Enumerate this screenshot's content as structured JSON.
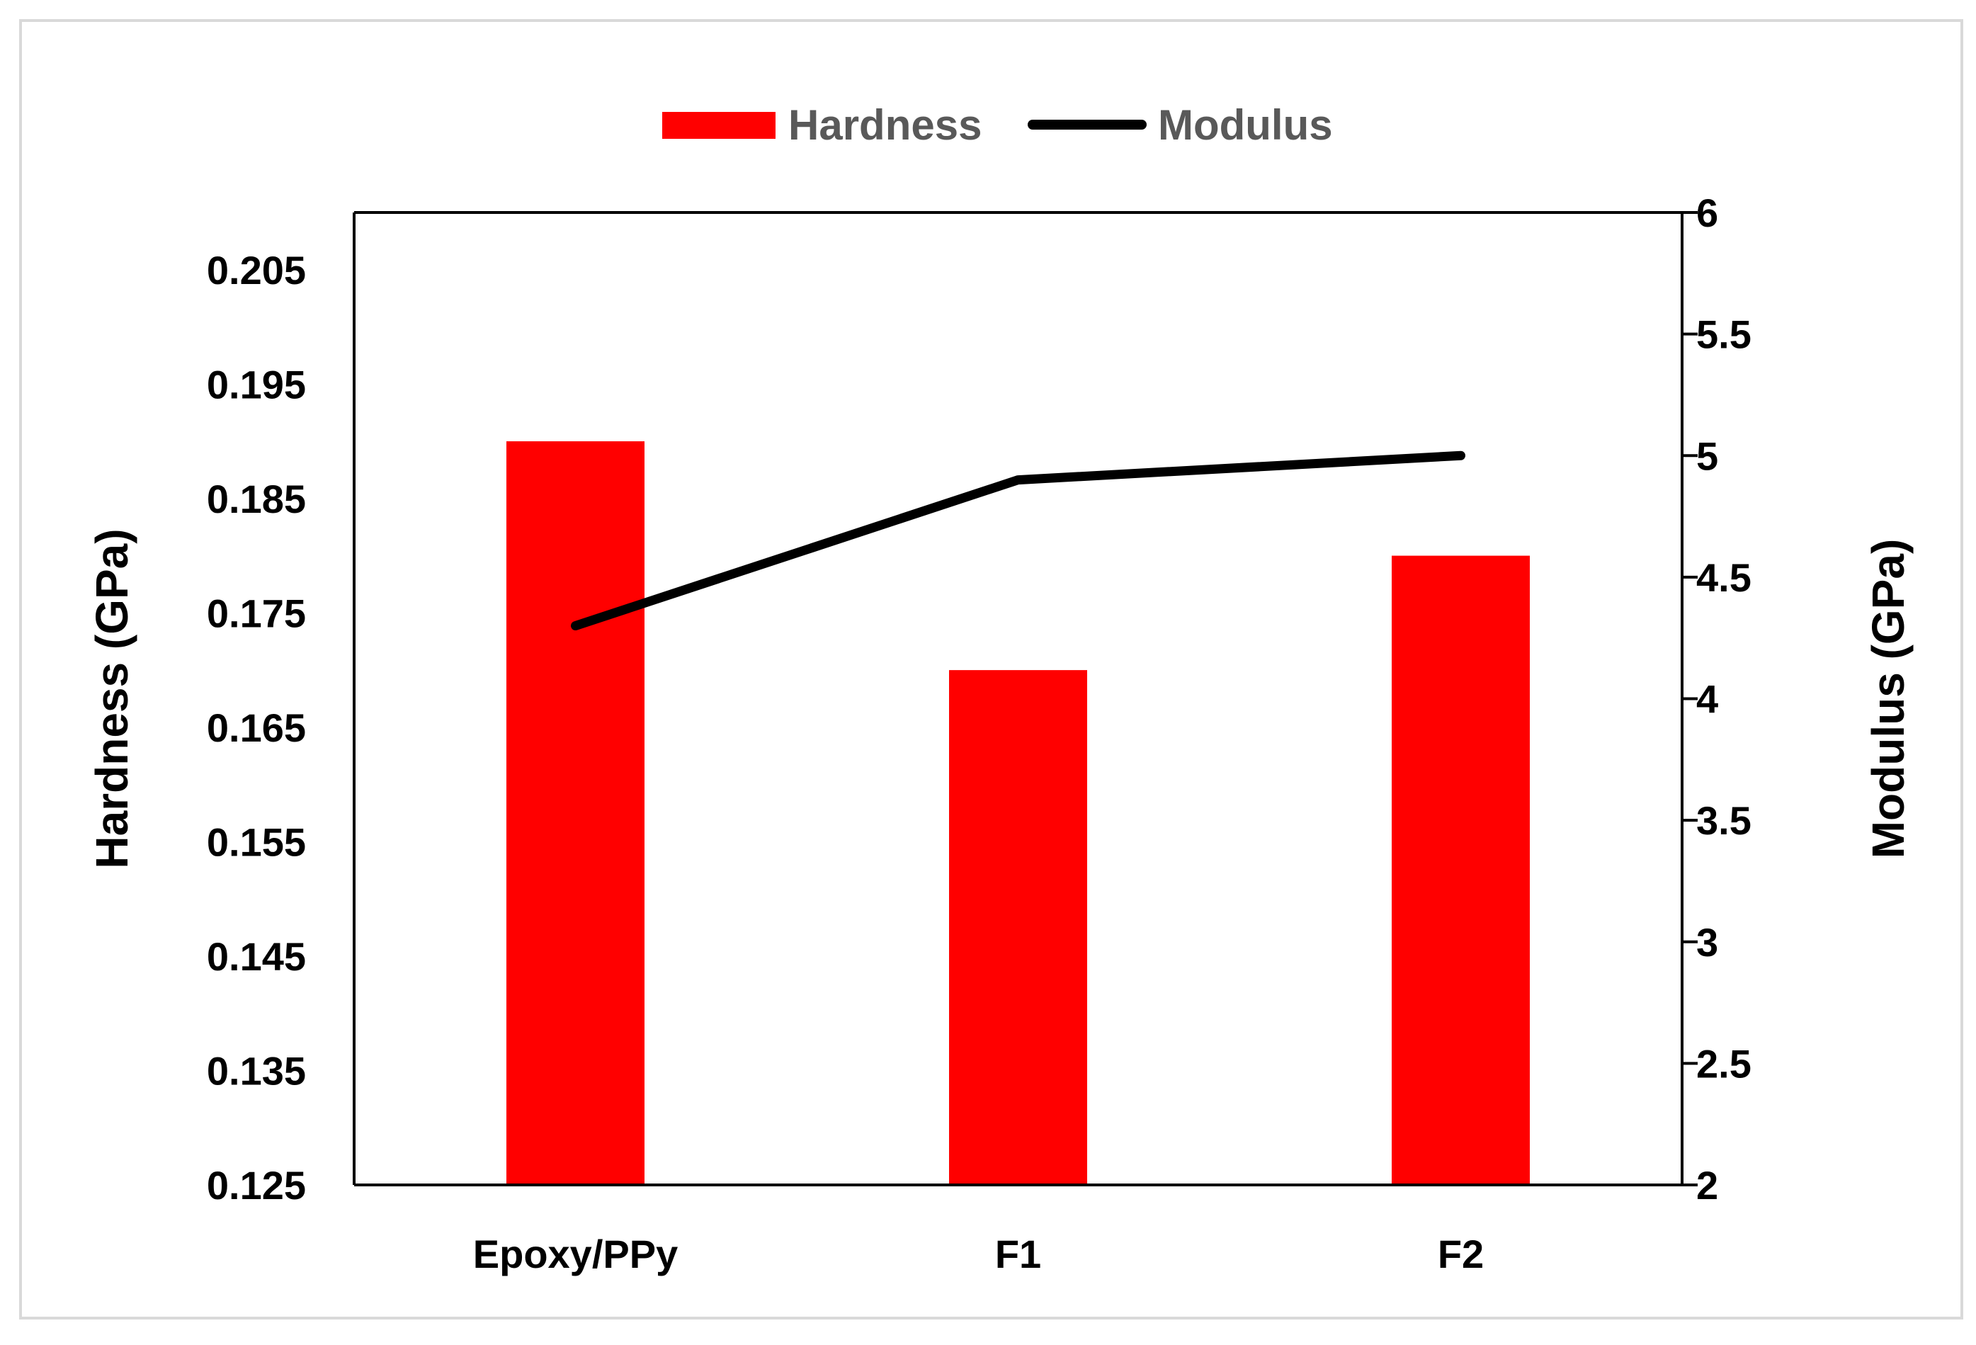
{
  "chart_data": {
    "type": "bar",
    "categories": [
      "Epoxy/PPy",
      "F1",
      "F2"
    ],
    "series": [
      {
        "name": "Hardness",
        "type": "bar",
        "axis": "left",
        "color": "#ff0000",
        "values": [
          0.19,
          0.17,
          0.18
        ]
      },
      {
        "name": "Modulus",
        "type": "line",
        "axis": "right",
        "color": "#000000",
        "values": [
          4.3,
          4.9,
          5.0
        ]
      }
    ],
    "ylabel": "Hardness (GPa)",
    "y2label": "Modulus (GPa)",
    "ylim": [
      0.125,
      0.21
    ],
    "y2lim": [
      2,
      6
    ],
    "yticks": [
      "0.125",
      "0.135",
      "0.145",
      "0.155",
      "0.165",
      "0.175",
      "0.185",
      "0.195",
      "0.205"
    ],
    "y2ticks": [
      "2",
      "2.5",
      "3",
      "3.5",
      "4",
      "4.5",
      "5",
      "5.5",
      "6"
    ],
    "grid": false,
    "legend": "top-center"
  }
}
